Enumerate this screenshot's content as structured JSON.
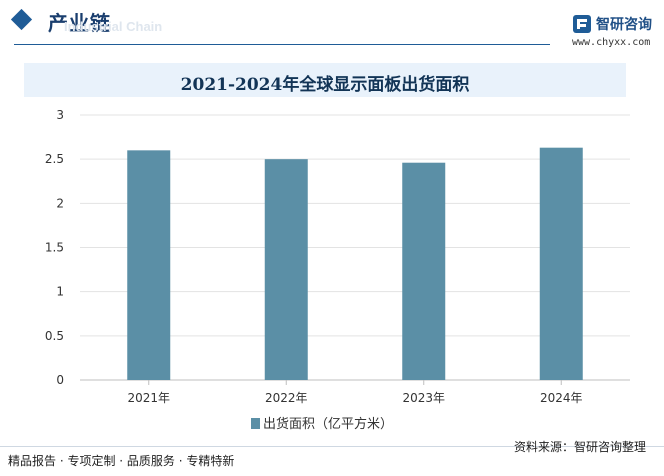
{
  "header": {
    "section_title": "产业链",
    "watermark_text": "Industrial Chain",
    "brand_name": "智研咨询",
    "brand_url": "www.chyxx.com",
    "accent_color": "#1f5c97",
    "logo_icon": "zhiyan-logo-icon",
    "section_icon": "diamond-icon"
  },
  "chart_data": {
    "type": "bar",
    "title": "2021-2024年全球显示面板出货面积",
    "categories": [
      "2021年",
      "2022年",
      "2023年",
      "2024年"
    ],
    "series": [
      {
        "name": "出货面积（亿平方米）",
        "values": [
          2.6,
          2.5,
          2.46,
          2.63
        ],
        "color": "#5b8fa6"
      }
    ],
    "ylim": [
      0,
      3
    ],
    "yticks": [
      0,
      0.5,
      1,
      1.5,
      2,
      2.5,
      3
    ],
    "ytick_labels": [
      "0",
      "0.5",
      "1",
      "1.5",
      "2",
      "2.5",
      "3"
    ],
    "grid": true,
    "legend_position": "bottom"
  },
  "footer": {
    "left_text": "精品报告 · 专项定制 · 品质服务 · 专精特新",
    "source_text": "资料来源：智研咨询整理"
  }
}
